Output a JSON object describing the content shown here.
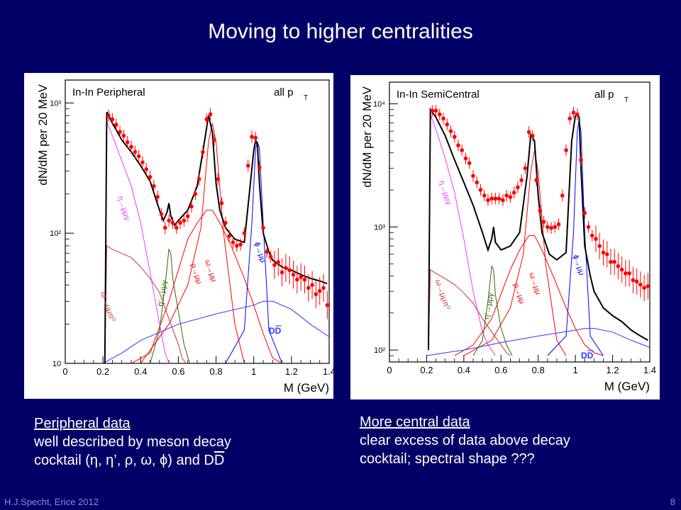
{
  "slide": {
    "title": "Moving to higher centralities",
    "footer_left": "H.J.Specht, Erice 2012",
    "page_number": "8"
  },
  "captions": {
    "left": {
      "heading": "Peripheral data",
      "line1": "well described by meson decay",
      "line2_prefix": "cocktail (η, η’, ρ, ω, ϕ)  and D",
      "line2_overline": "D"
    },
    "right": {
      "heading": "More central data",
      "line1": "clear excess of data above decay",
      "line2": "cocktail; spectral shape ???"
    }
  },
  "colors": {
    "background": "#000066",
    "data_points": "#ff0000",
    "total": "#000000",
    "eta": "#ff33ff",
    "omega_dalitz": "#cc3333",
    "rho": "#ff0000",
    "omega": "#ff0000",
    "eta_prime": "#336600",
    "phi": "#0000ff",
    "dd": "#3333ff"
  },
  "chart_data": [
    {
      "type": "line",
      "title": "In-In Peripheral",
      "corner_label": "all p",
      "corner_label_sub": "T",
      "ylabel": "dN/dM per 20 MeV",
      "xlabel": "M (GeV)",
      "xlim": [
        0,
        1.4
      ],
      "ylim": [
        10,
        1500
      ],
      "yscale": "log",
      "xticks": [
        "0",
        "0.2",
        "0.4",
        "0.6",
        "0.8",
        "1",
        "1.2",
        "1.4"
      ],
      "yticks": [
        {
          "value": 10,
          "label": "10"
        },
        {
          "value": 100,
          "label": "10²"
        },
        {
          "value": 1000,
          "label": "10³"
        }
      ],
      "component_labels": [
        "η→μμγ",
        "ω→μμπ⁰",
        "η'→μμγ",
        "ρ→μμ",
        "ω→μμ",
        "ϕ→μμ",
        "DD"
      ],
      "data_points": {
        "x": [
          0.23,
          0.25,
          0.27,
          0.29,
          0.31,
          0.33,
          0.35,
          0.37,
          0.39,
          0.41,
          0.43,
          0.45,
          0.47,
          0.49,
          0.51,
          0.53,
          0.55,
          0.57,
          0.59,
          0.61,
          0.63,
          0.65,
          0.67,
          0.69,
          0.71,
          0.73,
          0.75,
          0.77,
          0.79,
          0.81,
          0.83,
          0.85,
          0.87,
          0.89,
          0.91,
          0.93,
          0.95,
          0.97,
          0.99,
          1.01,
          1.03,
          1.05,
          1.07,
          1.09,
          1.11,
          1.13,
          1.15,
          1.17,
          1.19,
          1.21,
          1.23,
          1.25,
          1.27,
          1.29,
          1.31,
          1.33,
          1.35,
          1.37,
          1.39
        ],
        "y": [
          800,
          750,
          680,
          600,
          560,
          500,
          460,
          420,
          390,
          350,
          310,
          270,
          230,
          190,
          140,
          110,
          125,
          120,
          110,
          120,
          125,
          135,
          160,
          200,
          260,
          420,
          750,
          820,
          520,
          260,
          170,
          120,
          95,
          85,
          80,
          82,
          100,
          330,
          550,
          540,
          320,
          110,
          72,
          66,
          57,
          60,
          50,
          54,
          52,
          48,
          44,
          46,
          44,
          38,
          40,
          34,
          36,
          38,
          28
        ]
      },
      "series": [
        {
          "name": "total",
          "x": [
            0.21,
            0.22,
            0.25,
            0.3,
            0.35,
            0.4,
            0.45,
            0.5,
            0.52,
            0.54,
            0.55,
            0.56,
            0.58,
            0.6,
            0.65,
            0.7,
            0.74,
            0.76,
            0.78,
            0.8,
            0.82,
            0.85,
            0.9,
            0.95,
            1.0,
            1.01,
            1.02,
            1.03,
            1.05,
            1.08,
            1.1,
            1.15,
            1.2,
            1.25,
            1.3,
            1.35,
            1.39
          ],
          "y": [
            10,
            850,
            700,
            520,
            420,
            330,
            250,
            150,
            125,
            145,
            170,
            135,
            115,
            125,
            150,
            230,
            520,
            800,
            600,
            240,
            150,
            110,
            90,
            85,
            430,
            520,
            470,
            240,
            100,
            72,
            62,
            55,
            52,
            48,
            45,
            43,
            41
          ]
        },
        {
          "name": "η→μμγ",
          "x": [
            0.21,
            0.22,
            0.25,
            0.3,
            0.35,
            0.4,
            0.45,
            0.5,
            0.53,
            0.55
          ],
          "y": [
            10,
            720,
            560,
            360,
            230,
            120,
            50,
            20,
            12,
            10
          ]
        },
        {
          "name": "ω→μμπ⁰",
          "x": [
            0.21,
            0.22,
            0.25,
            0.3,
            0.35,
            0.4,
            0.45,
            0.5,
            0.55,
            0.6,
            0.62,
            0.64
          ],
          "y": [
            10,
            80,
            75,
            70,
            65,
            55,
            45,
            35,
            22,
            14,
            11,
            10
          ]
        },
        {
          "name": "ρ→μμ",
          "x": [
            0.35,
            0.45,
            0.55,
            0.65,
            0.7,
            0.75,
            0.78,
            0.82,
            0.88,
            0.95,
            1.0,
            1.05,
            1.1,
            1.15
          ],
          "y": [
            10,
            12,
            30,
            90,
            120,
            150,
            150,
            120,
            80,
            45,
            28,
            17,
            11,
            10
          ]
        },
        {
          "name": "ω→μμ",
          "x": [
            0.4,
            0.55,
            0.65,
            0.72,
            0.76,
            0.78,
            0.8,
            0.84,
            0.9,
            0.95
          ],
          "y": [
            10,
            20,
            40,
            110,
            500,
            700,
            500,
            100,
            20,
            10
          ]
        },
        {
          "name": "η'→μμγ",
          "x": [
            0.45,
            0.5,
            0.53,
            0.55,
            0.56,
            0.57,
            0.6,
            0.63,
            0.66
          ],
          "y": [
            10,
            18,
            40,
            75,
            70,
            45,
            25,
            14,
            10
          ]
        },
        {
          "name": "ϕ→μμ",
          "x": [
            0.85,
            0.95,
            0.99,
            1.01,
            1.02,
            1.03,
            1.05,
            1.08,
            1.15
          ],
          "y": [
            10,
            18,
            120,
            450,
            500,
            450,
            120,
            18,
            10
          ]
        },
        {
          "name": "DD",
          "x": [
            0.2,
            0.3,
            0.4,
            0.6,
            0.8,
            1.0,
            1.05,
            1.1,
            1.2,
            1.3,
            1.4
          ],
          "y": [
            10,
            12,
            15,
            20,
            24,
            28,
            30,
            30,
            26,
            20,
            16
          ]
        }
      ]
    },
    {
      "type": "line",
      "title": "In-In SemiCentral",
      "corner_label": "all p",
      "corner_label_sub": "T",
      "ylabel": "dN/dM per 20 MeV",
      "xlabel": "M (GeV)",
      "xlim": [
        0,
        1.4
      ],
      "ylim": [
        80,
        15000
      ],
      "yscale": "log",
      "xticks": [
        "0",
        "0.2",
        "0.4",
        "0.6",
        "0.8",
        "1",
        "1.2",
        "1.4"
      ],
      "yticks": [
        {
          "value": 100,
          "label": "10²"
        },
        {
          "value": 1000,
          "label": "10³"
        },
        {
          "value": 10000,
          "label": "10⁴"
        }
      ],
      "component_labels": [
        "η→μμγ",
        "ω→μμπ⁰",
        "η'→μμγ",
        "ρ→μμ",
        "ω→μμ",
        "ϕ→μμ",
        "DD"
      ],
      "data_points": {
        "x": [
          0.23,
          0.25,
          0.27,
          0.29,
          0.31,
          0.33,
          0.35,
          0.37,
          0.39,
          0.41,
          0.43,
          0.45,
          0.47,
          0.49,
          0.51,
          0.53,
          0.55,
          0.57,
          0.59,
          0.61,
          0.63,
          0.65,
          0.67,
          0.69,
          0.71,
          0.73,
          0.75,
          0.77,
          0.79,
          0.81,
          0.83,
          0.85,
          0.87,
          0.89,
          0.91,
          0.93,
          0.95,
          0.97,
          0.99,
          1.01,
          1.03,
          1.05,
          1.07,
          1.09,
          1.11,
          1.13,
          1.15,
          1.17,
          1.19,
          1.21,
          1.23,
          1.25,
          1.27,
          1.29,
          1.31,
          1.33,
          1.35,
          1.37,
          1.39
        ],
        "y": [
          8800,
          8800,
          8200,
          7600,
          6800,
          6000,
          5400,
          4600,
          4200,
          3600,
          3300,
          2600,
          2300,
          2000,
          1800,
          1650,
          1700,
          1700,
          1700,
          1650,
          1800,
          1750,
          1900,
          2100,
          2400,
          3000,
          5900,
          5500,
          2400,
          1350,
          1100,
          1000,
          980,
          1000,
          1050,
          1800,
          4200,
          7600,
          8500,
          8200,
          3500,
          1300,
          1000,
          850,
          800,
          700,
          620,
          600,
          520,
          520,
          480,
          450,
          420,
          420,
          370,
          360,
          340,
          320,
          330
        ]
      },
      "series": [
        {
          "name": "total",
          "x": [
            0.21,
            0.22,
            0.25,
            0.3,
            0.35,
            0.4,
            0.45,
            0.5,
            0.53,
            0.55,
            0.56,
            0.57,
            0.6,
            0.65,
            0.7,
            0.74,
            0.76,
            0.78,
            0.8,
            0.82,
            0.86,
            0.9,
            0.95,
            0.98,
            1.0,
            1.01,
            1.02,
            1.03,
            1.05,
            1.08,
            1.1,
            1.15,
            1.2,
            1.25,
            1.3,
            1.35,
            1.39
          ],
          "y": [
            100,
            9000,
            7800,
            5500,
            3500,
            2300,
            1500,
            900,
            650,
            800,
            1000,
            750,
            650,
            700,
            900,
            2600,
            5600,
            5000,
            1800,
            900,
            600,
            540,
            620,
            5000,
            8000,
            8200,
            7800,
            3000,
            700,
            400,
            300,
            220,
            190,
            170,
            145,
            130,
            120
          ]
        },
        {
          "name": "η→μμγ",
          "x": [
            0.21,
            0.22,
            0.25,
            0.3,
            0.35,
            0.4,
            0.45,
            0.5,
            0.53,
            0.55,
            0.57
          ],
          "y": [
            100,
            8200,
            6200,
            3600,
            1900,
            800,
            300,
            140,
            110,
            100,
            90
          ]
        },
        {
          "name": "ω→μμπ⁰",
          "x": [
            0.21,
            0.22,
            0.25,
            0.3,
            0.35,
            0.4,
            0.45,
            0.5,
            0.55,
            0.6,
            0.63,
            0.65
          ],
          "y": [
            100,
            450,
            420,
            380,
            340,
            290,
            240,
            180,
            140,
            110,
            95,
            90
          ]
        },
        {
          "name": "ρ→μμ",
          "x": [
            0.35,
            0.45,
            0.55,
            0.65,
            0.7,
            0.75,
            0.78,
            0.82,
            0.88,
            0.95,
            1.0,
            1.05,
            1.1,
            1.15
          ],
          "y": [
            90,
            110,
            180,
            450,
            650,
            850,
            850,
            650,
            400,
            220,
            150,
            110,
            95,
            90
          ]
        },
        {
          "name": "ω→μμ",
          "x": [
            0.4,
            0.55,
            0.65,
            0.72,
            0.76,
            0.78,
            0.8,
            0.84,
            0.9,
            0.95
          ],
          "y": [
            90,
            120,
            220,
            600,
            2800,
            4200,
            2800,
            500,
            120,
            90
          ]
        },
        {
          "name": "η'→μμγ",
          "x": [
            0.45,
            0.5,
            0.53,
            0.55,
            0.56,
            0.57,
            0.6,
            0.63,
            0.66
          ],
          "y": [
            90,
            120,
            250,
            480,
            450,
            280,
            150,
            110,
            90
          ]
        },
        {
          "name": "ϕ→μμ",
          "x": [
            0.85,
            0.95,
            0.99,
            1.01,
            1.02,
            1.03,
            1.05,
            1.08,
            1.15
          ],
          "y": [
            90,
            130,
            900,
            6000,
            7500,
            6000,
            900,
            130,
            90
          ]
        },
        {
          "name": "DD",
          "x": [
            0.2,
            0.3,
            0.4,
            0.6,
            0.8,
            1.0,
            1.05,
            1.1,
            1.2,
            1.3,
            1.4
          ],
          "y": [
            90,
            95,
            100,
            115,
            130,
            145,
            150,
            150,
            140,
            120,
            105
          ]
        }
      ]
    }
  ]
}
